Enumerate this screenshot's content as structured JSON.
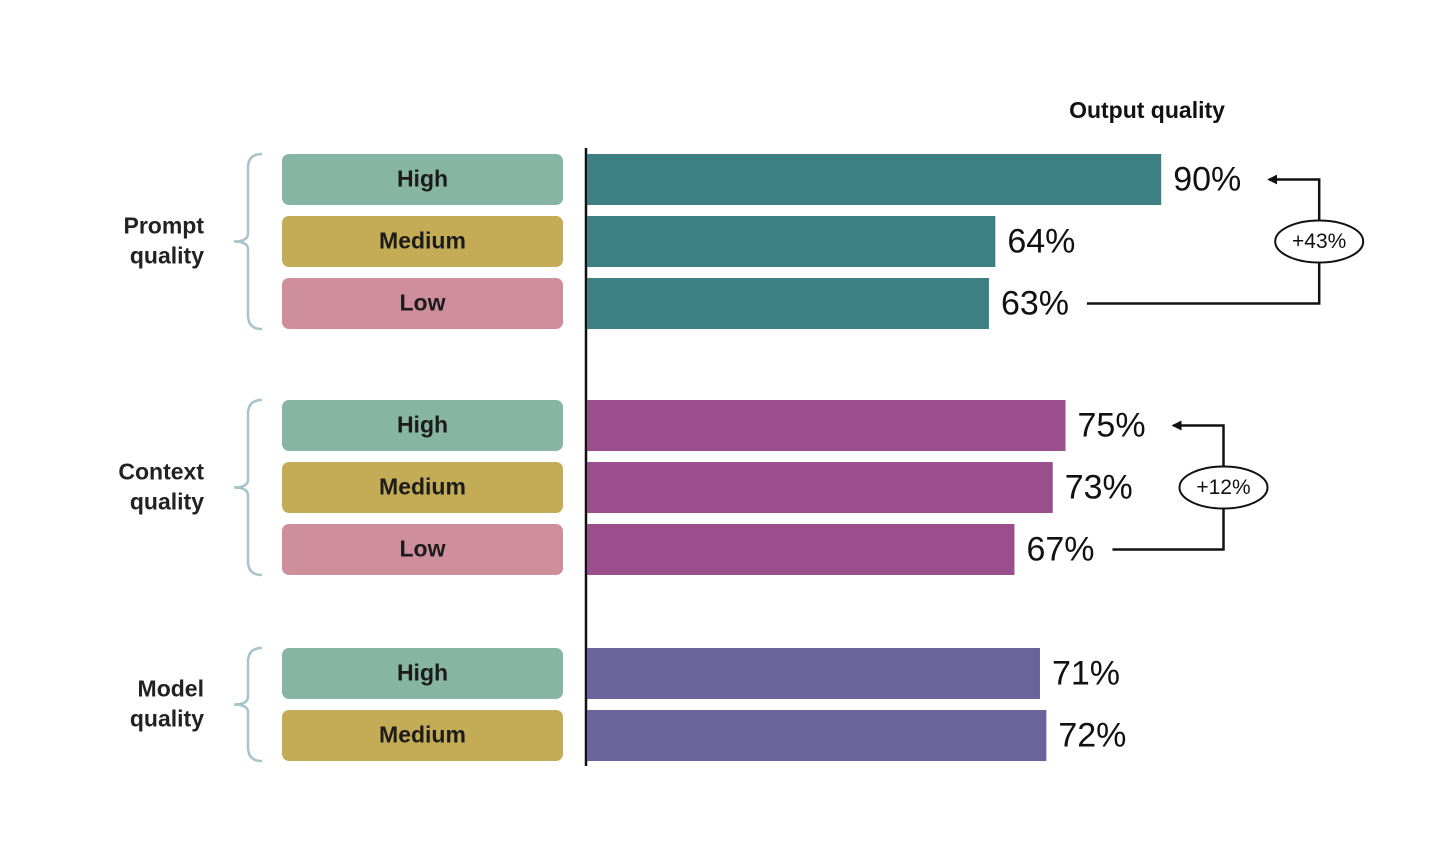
{
  "chart_data": {
    "type": "bar",
    "orientation": "horizontal",
    "title": "Output quality",
    "unit": "%",
    "xlim": [
      0,
      100
    ],
    "grid": false,
    "groups": [
      {
        "id": "prompt",
        "label_lines": [
          "Prompt",
          "quality"
        ],
        "color": "#3d7f82",
        "rows": [
          {
            "level": "High",
            "value": 90,
            "label": "90%"
          },
          {
            "level": "Medium",
            "value": 64,
            "label": "64%"
          },
          {
            "level": "Low",
            "value": 63,
            "label": "63%"
          }
        ],
        "delta": {
          "label": "+43%",
          "from": "Low",
          "to": "High"
        }
      },
      {
        "id": "context",
        "label_lines": [
          "Context",
          "quality"
        ],
        "color": "#9a4f8c",
        "rows": [
          {
            "level": "High",
            "value": 75,
            "label": "75%"
          },
          {
            "level": "Medium",
            "value": 73,
            "label": "73%"
          },
          {
            "level": "Low",
            "value": 67,
            "label": "67%"
          }
        ],
        "delta": {
          "label": "+12%",
          "from": "Low",
          "to": "High"
        }
      },
      {
        "id": "model",
        "label_lines": [
          "Model",
          "quality"
        ],
        "color": "#6a639c",
        "rows": [
          {
            "level": "High",
            "value": 71,
            "label": "71%"
          },
          {
            "level": "Medium",
            "value": 72,
            "label": "72%"
          }
        ]
      }
    ],
    "level_colors": {
      "High": "#87b5a4",
      "Medium": "#c4ab56",
      "Low": "#cf8e9b"
    },
    "brace_color": "#a7c4c8",
    "axis_color": "#111111"
  }
}
